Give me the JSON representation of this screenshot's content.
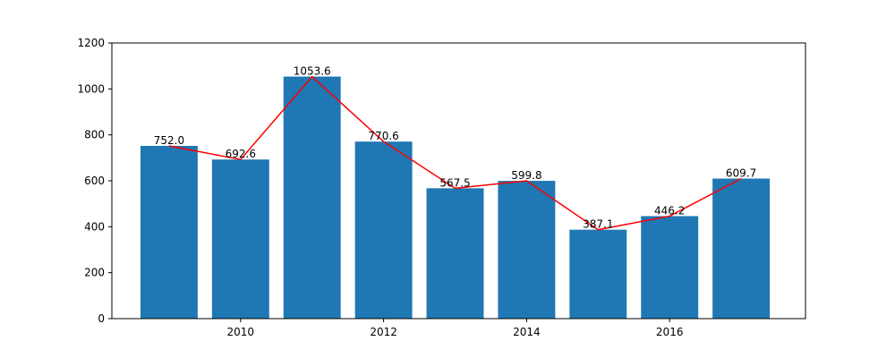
{
  "chart_data": {
    "type": "bar",
    "x": [
      2009,
      2010,
      2011,
      2012,
      2013,
      2014,
      2015,
      2016,
      2017
    ],
    "values": [
      752.0,
      692.6,
      1053.6,
      770.6,
      567.5,
      599.8,
      387.1,
      446.2,
      609.7
    ],
    "data_labels": [
      "752.0",
      "692.6",
      "1053.6",
      "770.6",
      "567.5",
      "599.8",
      "387.1",
      "446.2",
      "609.7"
    ],
    "overlay_line": {
      "type": "line",
      "values": [
        752.0,
        692.6,
        1053.6,
        770.6,
        567.5,
        599.8,
        387.1,
        446.2,
        609.7
      ]
    },
    "title": "",
    "xlabel": "",
    "ylabel": "",
    "xlim": [
      2008.2,
      2017.9
    ],
    "ylim": [
      0,
      1200
    ],
    "x_ticks": [
      2010,
      2012,
      2014,
      2016
    ],
    "x_tick_labels": [
      "2010",
      "2012",
      "2014",
      "2016"
    ],
    "y_ticks": [
      0,
      200,
      400,
      600,
      800,
      1000,
      1200
    ],
    "y_tick_labels": [
      "0",
      "200",
      "400",
      "600",
      "800",
      "1000",
      "1200"
    ],
    "bar_width": 0.8,
    "grid": false,
    "legend": "none",
    "colors": {
      "bar": "#1f77b4",
      "line": "#ff0000",
      "axis": "#000000"
    }
  }
}
